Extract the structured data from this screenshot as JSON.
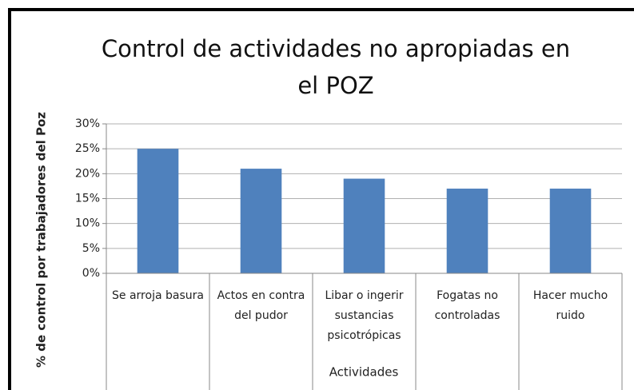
{
  "chart_data": {
    "type": "bar",
    "title": "Control de actividades no apropiadas en el POZ",
    "x_label": "Actividades",
    "y_label": "% de control por trabajadores del Poz",
    "categories": [
      "Se arroja basura",
      "Actos en contra del pudor",
      "Libar o ingerir sustancias psicotrópicas",
      "Fogatas no controladas",
      "Hacer mucho ruido"
    ],
    "values": [
      25,
      21,
      19,
      17,
      17
    ],
    "color": "#4f81bd",
    "ylim": [
      0,
      30
    ],
    "yticks": [
      {
        "value": 0,
        "label": "0%"
      },
      {
        "value": 5,
        "label": "5%"
      },
      {
        "value": 10,
        "label": "10%"
      },
      {
        "value": 15,
        "label": "15%"
      },
      {
        "value": 20,
        "label": "20%"
      },
      {
        "value": 25,
        "label": "25%"
      },
      {
        "value": 30,
        "label": "30%"
      }
    ],
    "grid": true
  }
}
